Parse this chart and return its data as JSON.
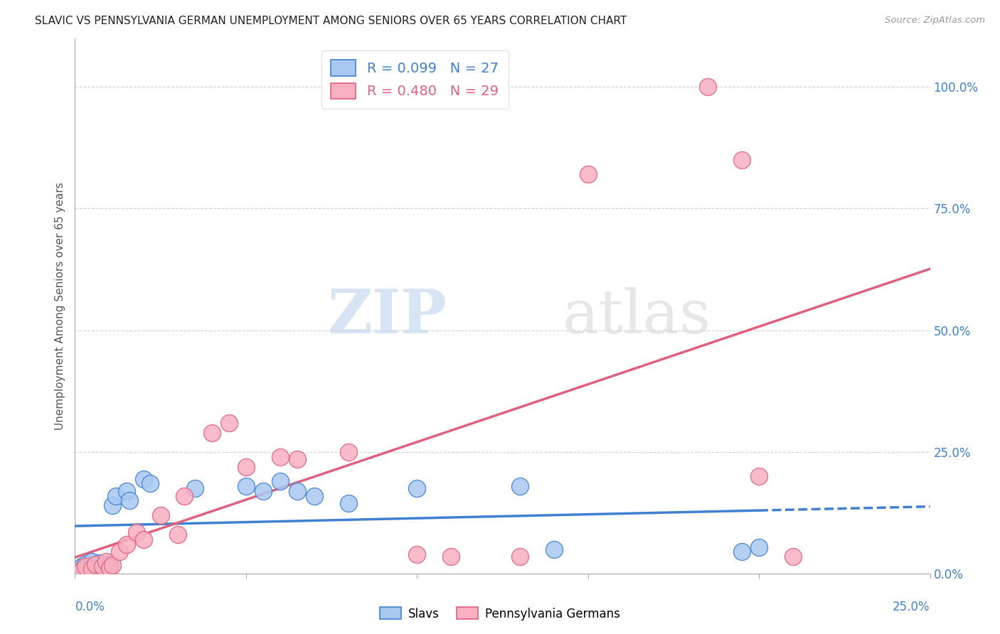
{
  "title": "SLAVIC VS PENNSYLVANIA GERMAN UNEMPLOYMENT AMONG SENIORS OVER 65 YEARS CORRELATION CHART",
  "source": "Source: ZipAtlas.com",
  "ylabel": "Unemployment Among Seniors over 65 years",
  "right_yticks": [
    "0.0%",
    "25.0%",
    "50.0%",
    "75.0%",
    "100.0%"
  ],
  "right_yvalues": [
    0.0,
    25.0,
    50.0,
    75.0,
    100.0
  ],
  "slavs_R": 0.099,
  "slavs_N": 27,
  "penn_R": 0.48,
  "penn_N": 29,
  "slavs_color": "#A8C8F0",
  "penn_color": "#F8B0C0",
  "slavs_line_color": "#4080D0",
  "penn_line_color": "#E06080",
  "watermark_zip": "ZIP",
  "watermark_atlas": "atlas",
  "slavs_points": [
    [
      0.2,
      1.5
    ],
    [
      0.3,
      2.0
    ],
    [
      0.4,
      1.2
    ],
    [
      0.5,
      2.5
    ],
    [
      0.6,
      1.8
    ],
    [
      0.7,
      2.2
    ],
    [
      0.8,
      1.5
    ],
    [
      0.9,
      2.0
    ],
    [
      1.0,
      1.8
    ],
    [
      1.1,
      14.0
    ],
    [
      1.2,
      16.0
    ],
    [
      1.5,
      17.0
    ],
    [
      1.6,
      15.0
    ],
    [
      2.0,
      19.5
    ],
    [
      2.2,
      18.5
    ],
    [
      3.5,
      17.5
    ],
    [
      5.0,
      18.0
    ],
    [
      5.5,
      17.0
    ],
    [
      6.0,
      19.0
    ],
    [
      6.5,
      17.0
    ],
    [
      7.0,
      16.0
    ],
    [
      8.0,
      14.5
    ],
    [
      10.0,
      17.5
    ],
    [
      13.0,
      18.0
    ],
    [
      14.0,
      5.0
    ],
    [
      19.5,
      4.5
    ],
    [
      20.0,
      5.5
    ]
  ],
  "penn_points": [
    [
      0.2,
      0.8
    ],
    [
      0.3,
      1.5
    ],
    [
      0.5,
      1.0
    ],
    [
      0.6,
      2.0
    ],
    [
      0.8,
      1.5
    ],
    [
      0.9,
      2.5
    ],
    [
      1.0,
      1.2
    ],
    [
      1.1,
      1.8
    ],
    [
      1.3,
      4.5
    ],
    [
      1.5,
      6.0
    ],
    [
      1.8,
      8.5
    ],
    [
      2.0,
      7.0
    ],
    [
      2.5,
      12.0
    ],
    [
      3.0,
      8.0
    ],
    [
      3.2,
      16.0
    ],
    [
      4.0,
      29.0
    ],
    [
      4.5,
      31.0
    ],
    [
      5.0,
      22.0
    ],
    [
      6.5,
      23.5
    ],
    [
      6.0,
      24.0
    ],
    [
      8.0,
      25.0
    ],
    [
      10.0,
      4.0
    ],
    [
      11.0,
      3.5
    ],
    [
      13.0,
      3.5
    ],
    [
      15.0,
      82.0
    ],
    [
      18.5,
      100.0
    ],
    [
      19.5,
      85.0
    ],
    [
      20.0,
      20.0
    ],
    [
      21.0,
      3.5
    ]
  ],
  "xlim": [
    0.0,
    25.0
  ],
  "ylim": [
    -2.0,
    110.0
  ],
  "plot_ylim": [
    0.0,
    110.0
  ],
  "background_color": "#FFFFFF",
  "grid_color": "#CCCCCC"
}
